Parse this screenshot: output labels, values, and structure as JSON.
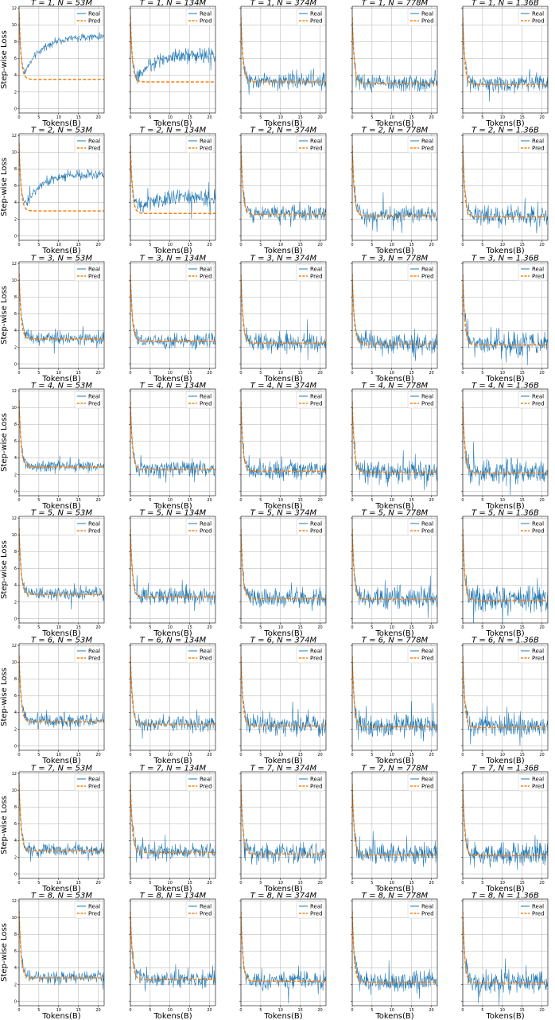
{
  "figure": {
    "ylabel": "Step-wise Loss",
    "xlabel": "Tokens(B)",
    "legend": {
      "real": "Real",
      "pred": "Pred",
      "position": "top-right"
    },
    "colors": {
      "real": "#1f77b4",
      "pred": "#ff7f0e"
    },
    "n_values": [
      "53M",
      "134M",
      "374M",
      "778M",
      "1.36B"
    ],
    "t_values": [
      "1",
      "2",
      "3",
      "4",
      "5",
      "6",
      "7",
      "8"
    ]
  },
  "chart_data": {
    "type": "line",
    "layout": "8 rows (T) x 5 columns (N) grid of subplots",
    "x_ticks": [
      0,
      5,
      10,
      15,
      20
    ],
    "y_ticks": [
      0,
      2,
      4,
      6,
      8,
      10,
      12
    ],
    "x_range": [
      0,
      21.5
    ],
    "y_range": [
      -0.5,
      12.2
    ],
    "grid": true,
    "y_tick_labels_on": "first column only",
    "series": [
      {
        "name": "Real",
        "style": "solid thin line, noisy"
      },
      {
        "name": "Pred",
        "style": "dashed line"
      }
    ],
    "panels": [
      {
        "T": "1",
        "N": "53M",
        "real_start": 11.5,
        "real_valley": 4.2,
        "real_end": 8.6,
        "noise": 0.25,
        "pred_start": 11.5,
        "pred_end": 3.5
      },
      {
        "T": "1",
        "N": "134M",
        "real_start": 11.0,
        "real_valley": 3.6,
        "real_end": 6.4,
        "noise": 0.55,
        "pred_start": 11.0,
        "pred_end": 3.2
      },
      {
        "T": "1",
        "N": "374M",
        "real_start": 10.9,
        "real_end": 3.3,
        "noise": 0.5,
        "pred_start": 10.9,
        "pred_end": 3.2
      },
      {
        "T": "1",
        "N": "778M",
        "real_start": 10.9,
        "real_end": 3.1,
        "noise": 0.6,
        "pred_start": 10.9,
        "pred_end": 3.0
      },
      {
        "T": "1",
        "N": "1.36B",
        "real_start": 10.9,
        "real_end": 3.0,
        "noise": 0.6,
        "pred_start": 10.9,
        "pred_end": 2.9
      },
      {
        "T": "2",
        "N": "53M",
        "real_start": 11.0,
        "real_valley": 3.6,
        "real_end": 7.4,
        "noise": 0.35,
        "pred_start": 11.0,
        "pred_end": 3.0
      },
      {
        "T": "2",
        "N": "134M",
        "real_start": 10.8,
        "real_valley": 3.4,
        "real_end": 4.6,
        "noise": 0.6,
        "pred_start": 10.8,
        "pred_end": 2.7
      },
      {
        "T": "2",
        "N": "374M",
        "real_start": 10.8,
        "real_end": 2.7,
        "noise": 0.55,
        "pred_start": 10.8,
        "pred_end": 2.6
      },
      {
        "T": "2",
        "N": "778M",
        "real_start": 10.8,
        "real_end": 2.5,
        "noise": 0.65,
        "pred_start": 10.8,
        "pred_end": 2.4
      },
      {
        "T": "2",
        "N": "1.36B",
        "real_start": 10.8,
        "real_end": 2.4,
        "noise": 0.7,
        "pred_start": 10.8,
        "pred_end": 2.3
      },
      {
        "T": "3",
        "N": "53M",
        "real_start": 10.8,
        "real_end": 3.1,
        "noise": 0.45,
        "pred_start": 10.8,
        "pred_end": 3.0
      },
      {
        "T": "3",
        "N": "134M",
        "real_start": 10.7,
        "real_end": 2.8,
        "noise": 0.55,
        "pred_start": 10.7,
        "pred_end": 2.7
      },
      {
        "T": "3",
        "N": "374M",
        "real_start": 10.7,
        "real_end": 2.6,
        "noise": 0.65,
        "pred_start": 10.7,
        "pred_end": 2.5
      },
      {
        "T": "3",
        "N": "778M",
        "real_start": 10.7,
        "real_end": 2.5,
        "noise": 0.75,
        "pred_start": 10.7,
        "pred_end": 2.4
      },
      {
        "T": "3",
        "N": "1.36B",
        "real_start": 10.7,
        "real_end": 2.4,
        "noise": 0.8,
        "pred_start": 10.7,
        "pred_end": 2.3
      },
      {
        "T": "4",
        "N": "53M",
        "real_start": 10.8,
        "real_end": 3.0,
        "noise": 0.4,
        "pred_start": 10.8,
        "pred_end": 2.9
      },
      {
        "T": "4",
        "N": "134M",
        "real_start": 10.7,
        "real_end": 2.7,
        "noise": 0.55,
        "pred_start": 10.7,
        "pred_end": 2.6
      },
      {
        "T": "4",
        "N": "374M",
        "real_start": 10.7,
        "real_end": 2.5,
        "noise": 0.7,
        "pred_start": 10.7,
        "pred_end": 2.4
      },
      {
        "T": "4",
        "N": "778M",
        "real_start": 10.7,
        "real_end": 2.4,
        "noise": 0.8,
        "pred_start": 10.7,
        "pred_end": 2.3
      },
      {
        "T": "4",
        "N": "1.36B",
        "real_start": 10.7,
        "real_end": 2.3,
        "noise": 0.85,
        "pred_start": 10.7,
        "pred_end": 2.2
      },
      {
        "T": "5",
        "N": "53M",
        "real_start": 10.8,
        "real_end": 3.0,
        "noise": 0.45,
        "pred_start": 10.8,
        "pred_end": 2.9
      },
      {
        "T": "5",
        "N": "134M",
        "real_start": 10.7,
        "real_end": 2.7,
        "noise": 0.55,
        "pred_start": 10.7,
        "pred_end": 2.6
      },
      {
        "T": "5",
        "N": "374M",
        "real_start": 10.7,
        "real_end": 2.5,
        "noise": 0.7,
        "pred_start": 10.7,
        "pred_end": 2.4
      },
      {
        "T": "5",
        "N": "778M",
        "real_start": 10.7,
        "real_end": 2.4,
        "noise": 0.8,
        "pred_start": 10.7,
        "pred_end": 2.3
      },
      {
        "T": "5",
        "N": "1.36B",
        "real_start": 10.7,
        "real_end": 2.3,
        "noise": 0.9,
        "pred_start": 10.7,
        "pred_end": 2.2
      },
      {
        "T": "6",
        "N": "53M",
        "real_start": 10.8,
        "real_end": 3.0,
        "noise": 0.45,
        "pred_start": 10.8,
        "pred_end": 2.9
      },
      {
        "T": "6",
        "N": "134M",
        "real_start": 10.7,
        "real_end": 2.7,
        "noise": 0.55,
        "pred_start": 10.7,
        "pred_end": 2.6
      },
      {
        "T": "6",
        "N": "374M",
        "real_start": 10.7,
        "real_end": 2.5,
        "noise": 0.7,
        "pred_start": 10.7,
        "pred_end": 2.4
      },
      {
        "T": "6",
        "N": "778M",
        "real_start": 10.7,
        "real_end": 2.4,
        "noise": 0.8,
        "pred_start": 10.7,
        "pred_end": 2.3
      },
      {
        "T": "6",
        "N": "1.36B",
        "real_start": 10.7,
        "real_end": 2.3,
        "noise": 0.85,
        "pred_start": 10.7,
        "pred_end": 2.2
      },
      {
        "T": "7",
        "N": "53M",
        "real_start": 10.8,
        "real_end": 2.9,
        "noise": 0.45,
        "pred_start": 10.8,
        "pred_end": 2.8
      },
      {
        "T": "7",
        "N": "134M",
        "real_start": 10.7,
        "real_end": 2.7,
        "noise": 0.55,
        "pred_start": 10.7,
        "pred_end": 2.6
      },
      {
        "T": "7",
        "N": "374M",
        "real_start": 10.7,
        "real_end": 2.5,
        "noise": 0.65,
        "pred_start": 10.7,
        "pred_end": 2.4
      },
      {
        "T": "7",
        "N": "778M",
        "real_start": 10.7,
        "real_end": 2.4,
        "noise": 0.75,
        "pred_start": 10.7,
        "pred_end": 2.3
      },
      {
        "T": "7",
        "N": "1.36B",
        "real_start": 10.7,
        "real_end": 2.3,
        "noise": 0.8,
        "pred_start": 10.7,
        "pred_end": 2.2
      },
      {
        "T": "8",
        "N": "53M",
        "real_start": 10.8,
        "real_end": 2.9,
        "noise": 0.45,
        "pred_start": 10.8,
        "pred_end": 2.8
      },
      {
        "T": "8",
        "N": "134M",
        "real_start": 10.7,
        "real_end": 2.7,
        "noise": 0.55,
        "pred_start": 10.7,
        "pred_end": 2.6
      },
      {
        "T": "8",
        "N": "374M",
        "real_start": 10.7,
        "real_end": 2.5,
        "noise": 0.65,
        "pred_start": 10.7,
        "pred_end": 2.4
      },
      {
        "T": "8",
        "N": "778M",
        "real_start": 10.7,
        "real_end": 2.4,
        "noise": 0.75,
        "pred_start": 10.7,
        "pred_end": 2.3
      },
      {
        "T": "8",
        "N": "1.36B",
        "real_start": 10.7,
        "real_end": 2.3,
        "noise": 0.8,
        "pred_start": 10.7,
        "pred_end": 2.2
      }
    ]
  }
}
